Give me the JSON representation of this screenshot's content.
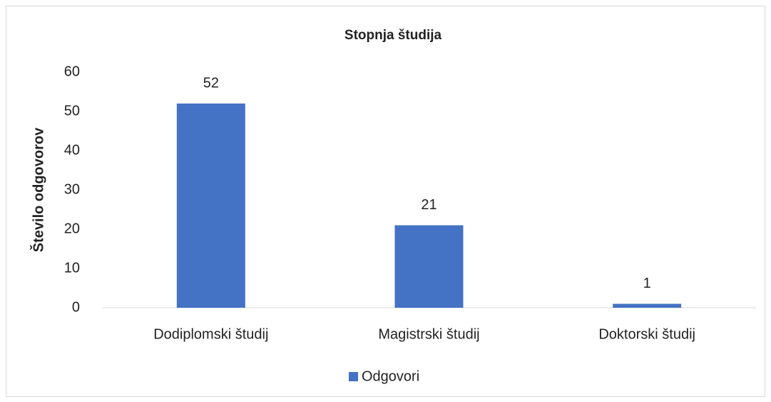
{
  "chart_data": {
    "type": "bar",
    "title": "Stopnja študija",
    "y_label": "Število odgovorov",
    "categories": [
      "Dodiplomski študij",
      "Magistrski študij",
      "Doktorski študij"
    ],
    "series": [
      {
        "name": "Odgovori",
        "color": "#4472c4",
        "values": [
          52,
          21,
          1
        ]
      }
    ],
    "ylim": [
      0,
      60
    ],
    "yticks": [
      0,
      10,
      20,
      30,
      40,
      50,
      60
    ],
    "grid": false,
    "data_labels": true,
    "legend": "bottom"
  }
}
